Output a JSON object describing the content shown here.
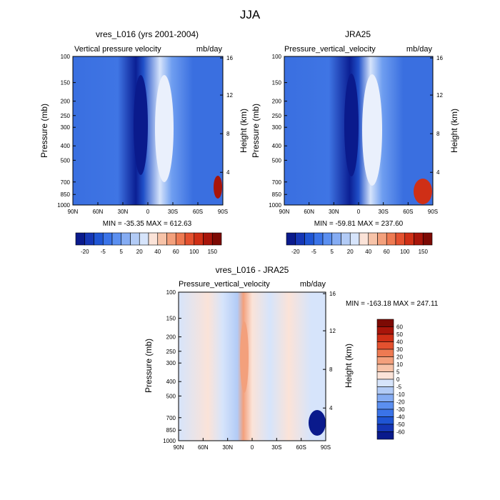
{
  "title": "JJA",
  "colors": {
    "cool": [
      "#0a1a8c",
      "#1536b5",
      "#1f55d4",
      "#3a73e8",
      "#5b8ff0",
      "#85acf3",
      "#b2cbf6",
      "#d6e4fb"
    ],
    "warm": [
      "#fbe3d8",
      "#f7c3a8",
      "#f3a07c",
      "#ee7a52",
      "#e4512f",
      "#cf2f16",
      "#a8150a",
      "#7d0a04"
    ],
    "diff_cool": [
      "#0a1a8c",
      "#1536b5",
      "#1f55d4",
      "#3a73e8",
      "#5b8ff0",
      "#85acf3",
      "#b2cbf6",
      "#d6e4fb"
    ],
    "diff_warm": [
      "#fbe3d8",
      "#f7c3a8",
      "#f3a07c",
      "#ee7a52",
      "#e4512f",
      "#cf2f16",
      "#a8150a",
      "#7d0a04"
    ]
  },
  "chart_data": [
    {
      "type": "heatmap",
      "title": "vres_L016 (yrs 2001-2004)",
      "variable_label": "Vertical pressure velocity",
      "units": "mb/day",
      "ylabel": "Pressure (mb)",
      "ylabel_right": "Height (km)",
      "x_ticks": [
        "90N",
        "60N",
        "30N",
        "0",
        "30S",
        "60S",
        "90S"
      ],
      "y_ticks": [
        "100",
        "150",
        "200",
        "250",
        "300",
        "400",
        "500",
        "700",
        "850",
        "1000"
      ],
      "y_ticks_right": [
        "16",
        "12",
        "8",
        "4"
      ],
      "stats": "MIN = -35.35   MAX = 612.63",
      "colorbar_labels": [
        "-20",
        "-5",
        "5",
        "20",
        "40",
        "60",
        "100",
        "150"
      ],
      "min": -35.35,
      "max": 612.63
    },
    {
      "type": "heatmap",
      "title": "JRA25",
      "variable_label": "Pressure_vertical_velocity",
      "units": "mb/day",
      "ylabel": "Pressure (mb)",
      "ylabel_right": "Height (km)",
      "x_ticks": [
        "90N",
        "60N",
        "30N",
        "0",
        "30S",
        "60S",
        "90S"
      ],
      "y_ticks": [
        "100",
        "150",
        "200",
        "250",
        "300",
        "400",
        "500",
        "700",
        "850",
        "1000"
      ],
      "y_ticks_right": [
        "16",
        "12",
        "8",
        "4"
      ],
      "stats": "MIN = -59.81   MAX = 237.60",
      "colorbar_labels": [
        "-20",
        "-5",
        "5",
        "20",
        "40",
        "60",
        "100",
        "150"
      ],
      "min": -59.81,
      "max": 237.6
    },
    {
      "type": "heatmap",
      "title": "vres_L016 - JRA25",
      "variable_label": "Pressure_vertical_velocity",
      "units": "mb/day",
      "ylabel": "Pressure (mb)",
      "ylabel_right": "Height (km)",
      "x_ticks": [
        "90N",
        "60N",
        "30N",
        "0",
        "30S",
        "60S",
        "90S"
      ],
      "y_ticks": [
        "100",
        "150",
        "200",
        "250",
        "300",
        "400",
        "500",
        "700",
        "850",
        "1000"
      ],
      "y_ticks_right": [
        "16",
        "12",
        "8",
        "4"
      ],
      "stats": "MIN = -163.18  MAX = 247.11",
      "colorbar_labels": [
        "60",
        "50",
        "40",
        "30",
        "20",
        "10",
        "5",
        "0",
        "-5",
        "-10",
        "-20",
        "-30",
        "-40",
        "-50",
        "-60"
      ],
      "min": -163.18,
      "max": 247.11
    }
  ]
}
